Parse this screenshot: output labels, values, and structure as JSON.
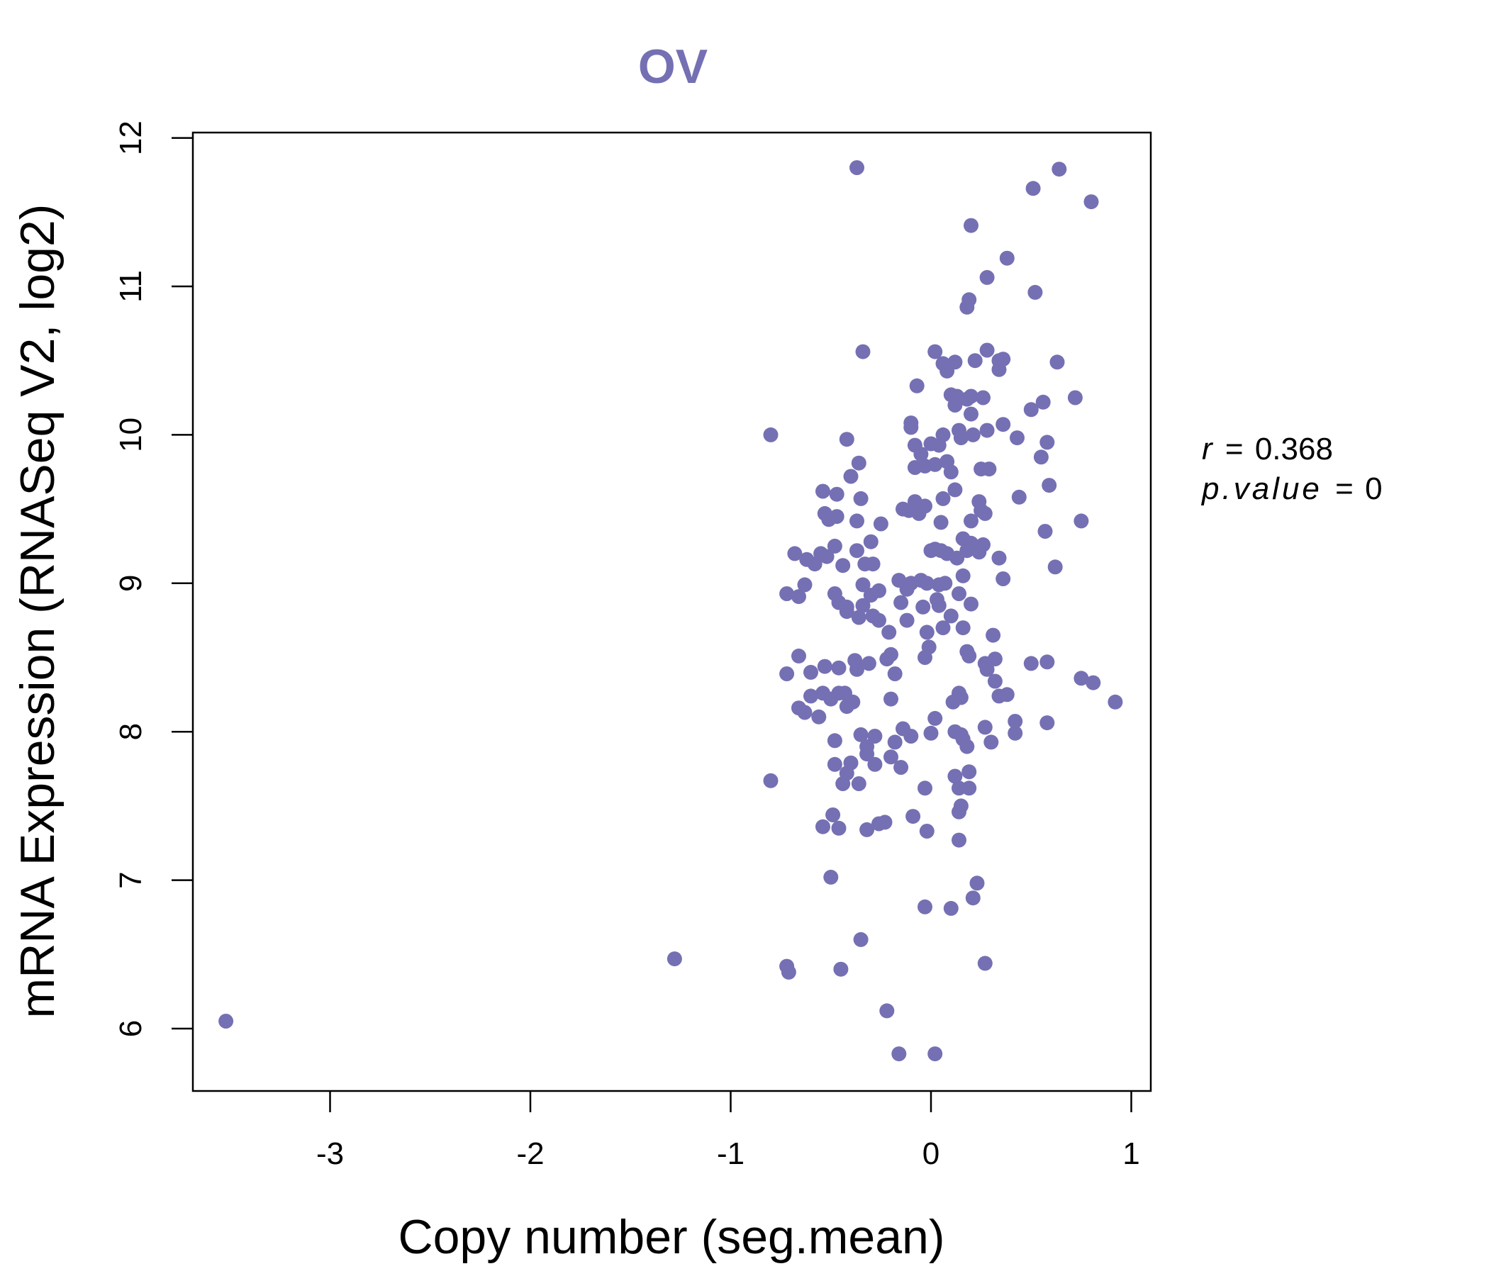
{
  "chart_data": {
    "type": "scatter",
    "title": "OV",
    "xlabel": "Copy number (seg.mean)",
    "ylabel": "mRNA Expression (RNASeq V2, log2)",
    "xlim": [
      -3.7,
      1.1
    ],
    "ylim": [
      5.6,
      12.05
    ],
    "x_ticks": [
      -3,
      -2,
      -1,
      0,
      1
    ],
    "x_tick_labels": [
      "-3",
      "-2",
      "-1",
      "0",
      "1"
    ],
    "y_ticks": [
      6,
      7,
      8,
      9,
      10,
      11,
      12
    ],
    "y_tick_labels": [
      "6",
      "7",
      "8",
      "9",
      "10",
      "11",
      "12"
    ],
    "grid": false,
    "point_color": "#7570b3",
    "stats": {
      "r_label": "r",
      "r_value": "0.368",
      "p_label": "p.value",
      "p_value": "0"
    },
    "points": [
      [
        -3.52,
        6.05
      ],
      [
        -1.28,
        6.47
      ],
      [
        -0.72,
        6.42
      ],
      [
        -0.71,
        6.38
      ],
      [
        -0.45,
        6.4
      ],
      [
        -0.35,
        6.6
      ],
      [
        -0.22,
        6.12
      ],
      [
        -0.16,
        5.83
      ],
      [
        0.02,
        5.83
      ],
      [
        0.27,
        6.44
      ],
      [
        -0.03,
        6.82
      ],
      [
        0.1,
        6.81
      ],
      [
        0.21,
        6.88
      ],
      [
        0.23,
        6.98
      ],
      [
        -0.5,
        7.02
      ],
      [
        -0.54,
        7.36
      ],
      [
        -0.46,
        7.35
      ],
      [
        -0.49,
        7.44
      ],
      [
        -0.32,
        7.34
      ],
      [
        -0.26,
        7.38
      ],
      [
        -0.23,
        7.39
      ],
      [
        -0.09,
        7.43
      ],
      [
        -0.02,
        7.33
      ],
      [
        0.14,
        7.27
      ],
      [
        0.14,
        7.46
      ],
      [
        0.15,
        7.5
      ],
      [
        -0.8,
        7.67
      ],
      [
        -0.44,
        7.65
      ],
      [
        -0.36,
        7.65
      ],
      [
        -0.48,
        7.78
      ],
      [
        -0.42,
        7.72
      ],
      [
        -0.4,
        7.79
      ],
      [
        -0.32,
        7.85
      ],
      [
        -0.28,
        7.78
      ],
      [
        -0.2,
        7.83
      ],
      [
        -0.15,
        7.76
      ],
      [
        -0.03,
        7.62
      ],
      [
        0.12,
        7.7
      ],
      [
        0.14,
        7.62
      ],
      [
        0.19,
        7.62
      ],
      [
        0.19,
        7.73
      ],
      [
        -0.48,
        7.94
      ],
      [
        -0.35,
        7.98
      ],
      [
        -0.32,
        7.9
      ],
      [
        -0.28,
        7.97
      ],
      [
        -0.18,
        7.93
      ],
      [
        -0.14,
        8.02
      ],
      [
        -0.1,
        7.97
      ],
      [
        0.0,
        7.99
      ],
      [
        0.02,
        8.09
      ],
      [
        0.12,
        8.0
      ],
      [
        0.15,
        7.98
      ],
      [
        0.16,
        7.95
      ],
      [
        0.18,
        7.9
      ],
      [
        0.27,
        8.03
      ],
      [
        0.3,
        7.93
      ],
      [
        0.42,
        7.99
      ],
      [
        0.42,
        8.07
      ],
      [
        0.58,
        8.06
      ],
      [
        -0.72,
        8.39
      ],
      [
        -0.66,
        8.16
      ],
      [
        -0.63,
        8.13
      ],
      [
        -0.6,
        8.24
      ],
      [
        -0.56,
        8.1
      ],
      [
        -0.54,
        8.26
      ],
      [
        -0.5,
        8.22
      ],
      [
        -0.46,
        8.26
      ],
      [
        -0.43,
        8.26
      ],
      [
        -0.42,
        8.17
      ],
      [
        -0.39,
        8.2
      ],
      [
        -0.6,
        8.4
      ],
      [
        -0.53,
        8.44
      ],
      [
        -0.46,
        8.43
      ],
      [
        -0.38,
        8.48
      ],
      [
        -0.37,
        8.42
      ],
      [
        -0.31,
        8.46
      ],
      [
        -0.22,
        8.49
      ],
      [
        -0.2,
        8.52
      ],
      [
        -0.18,
        8.39
      ],
      [
        -0.2,
        8.22
      ],
      [
        -0.03,
        8.5
      ],
      [
        -0.01,
        8.57
      ],
      [
        0.11,
        8.2
      ],
      [
        0.14,
        8.26
      ],
      [
        0.15,
        8.23
      ],
      [
        0.18,
        8.54
      ],
      [
        0.19,
        8.51
      ],
      [
        0.27,
        8.46
      ],
      [
        0.28,
        8.42
      ],
      [
        0.32,
        8.49
      ],
      [
        0.32,
        8.34
      ],
      [
        0.34,
        8.24
      ],
      [
        0.38,
        8.25
      ],
      [
        0.5,
        8.46
      ],
      [
        0.58,
        8.47
      ],
      [
        0.75,
        8.36
      ],
      [
        0.81,
        8.33
      ],
      [
        0.92,
        8.2
      ],
      [
        -0.66,
        8.51
      ],
      [
        -0.72,
        8.93
      ],
      [
        -0.66,
        8.91
      ],
      [
        -0.63,
        8.99
      ],
      [
        -0.48,
        8.93
      ],
      [
        -0.46,
        8.87
      ],
      [
        -0.42,
        8.81
      ],
      [
        -0.36,
        8.77
      ],
      [
        -0.34,
        8.85
      ],
      [
        -0.29,
        8.78
      ],
      [
        -0.26,
        8.75
      ],
      [
        -0.21,
        8.67
      ],
      [
        -0.15,
        8.87
      ],
      [
        -0.12,
        8.75
      ],
      [
        -0.04,
        8.84
      ],
      [
        -0.02,
        8.67
      ],
      [
        0.04,
        8.85
      ],
      [
        0.06,
        8.7
      ],
      [
        0.1,
        8.78
      ],
      [
        0.14,
        8.93
      ],
      [
        0.16,
        8.7
      ],
      [
        0.31,
        8.65
      ],
      [
        -0.68,
        9.2
      ],
      [
        -0.62,
        9.16
      ],
      [
        -0.58,
        9.13
      ],
      [
        -0.55,
        9.2
      ],
      [
        -0.52,
        9.18
      ],
      [
        -0.48,
        9.25
      ],
      [
        -0.44,
        9.12
      ],
      [
        -0.37,
        9.22
      ],
      [
        -0.33,
        9.13
      ],
      [
        -0.29,
        9.13
      ],
      [
        -0.34,
        8.99
      ],
      [
        -0.3,
        8.92
      ],
      [
        -0.26,
        8.95
      ],
      [
        -0.16,
        9.02
      ],
      [
        -0.1,
        9.0
      ],
      [
        -0.05,
        9.02
      ],
      [
        -0.02,
        9.0
      ],
      [
        0.02,
        9.23
      ],
      [
        0.05,
        9.22
      ],
      [
        0.08,
        9.2
      ],
      [
        0.13,
        9.17
      ],
      [
        0.16,
        9.3
      ],
      [
        0.18,
        9.22
      ],
      [
        0.2,
        9.27
      ],
      [
        0.24,
        9.21
      ],
      [
        0.26,
        9.26
      ],
      [
        0.34,
        9.17
      ],
      [
        0.36,
        9.03
      ],
      [
        0.57,
        9.35
      ],
      [
        0.62,
        9.11
      ],
      [
        0.16,
        9.05
      ],
      [
        0.04,
        8.99
      ],
      [
        -0.53,
        9.47
      ],
      [
        -0.51,
        9.43
      ],
      [
        -0.47,
        9.45
      ],
      [
        -0.37,
        9.42
      ],
      [
        -0.35,
        9.57
      ],
      [
        -0.25,
        9.4
      ],
      [
        -0.11,
        9.49
      ],
      [
        -0.08,
        9.55
      ],
      [
        -0.06,
        9.47
      ],
      [
        -0.03,
        9.52
      ],
      [
        0.05,
        9.41
      ],
      [
        0.06,
        9.57
      ],
      [
        0.12,
        9.63
      ],
      [
        0.2,
        9.42
      ],
      [
        0.24,
        9.55
      ],
      [
        0.27,
        9.47
      ],
      [
        0.44,
        9.58
      ],
      [
        0.59,
        9.66
      ],
      [
        0.75,
        9.42
      ],
      [
        -0.54,
        9.62
      ],
      [
        -0.47,
        9.6
      ],
      [
        -0.4,
        9.72
      ],
      [
        -0.36,
        9.81
      ],
      [
        -0.08,
        9.78
      ],
      [
        -0.03,
        9.79
      ],
      [
        0.02,
        9.8
      ],
      [
        0.08,
        9.82
      ],
      [
        0.1,
        9.75
      ],
      [
        0.25,
        9.77
      ],
      [
        0.29,
        9.77
      ],
      [
        0.55,
        9.85
      ],
      [
        -0.42,
        9.97
      ],
      [
        -0.08,
        9.93
      ],
      [
        -0.05,
        9.87
      ],
      [
        0.0,
        9.94
      ],
      [
        0.04,
        9.93
      ],
      [
        0.06,
        10.0
      ],
      [
        0.14,
        10.03
      ],
      [
        0.15,
        9.98
      ],
      [
        0.21,
        10.0
      ],
      [
        0.28,
        10.03
      ],
      [
        0.36,
        10.07
      ],
      [
        0.43,
        9.98
      ],
      [
        0.58,
        9.95
      ],
      [
        -0.8,
        10.0
      ],
      [
        -0.1,
        10.05
      ],
      [
        -0.1,
        10.08
      ],
      [
        0.12,
        10.2
      ],
      [
        0.13,
        10.26
      ],
      [
        0.18,
        10.24
      ],
      [
        0.2,
        10.14
      ],
      [
        0.2,
        10.26
      ],
      [
        0.26,
        10.25
      ],
      [
        0.5,
        10.17
      ],
      [
        0.56,
        10.22
      ],
      [
        0.72,
        10.25
      ],
      [
        -0.07,
        10.33
      ],
      [
        0.08,
        10.43
      ],
      [
        0.06,
        10.48
      ],
      [
        0.12,
        10.49
      ],
      [
        0.22,
        10.5
      ],
      [
        0.28,
        10.57
      ],
      [
        0.34,
        10.5
      ],
      [
        0.34,
        10.44
      ],
      [
        0.36,
        10.51
      ],
      [
        0.63,
        10.49
      ],
      [
        0.02,
        10.56
      ],
      [
        -0.34,
        10.56
      ],
      [
        0.18,
        10.86
      ],
      [
        0.19,
        10.91
      ],
      [
        0.28,
        11.06
      ],
      [
        0.52,
        10.96
      ],
      [
        0.38,
        11.19
      ],
      [
        0.2,
        11.41
      ],
      [
        -0.37,
        11.8
      ],
      [
        0.51,
        11.66
      ],
      [
        0.64,
        11.79
      ],
      [
        0.8,
        11.57
      ],
      [
        0.1,
        10.27
      ],
      [
        -0.14,
        9.5
      ],
      [
        0.25,
        9.49
      ],
      [
        -0.42,
        8.84
      ],
      [
        -0.12,
        8.96
      ],
      [
        0.03,
        8.89
      ],
      [
        0.2,
        8.86
      ],
      [
        0.07,
        9.0
      ],
      [
        -0.3,
        9.28
      ],
      [
        0.0,
        9.22
      ]
    ]
  }
}
